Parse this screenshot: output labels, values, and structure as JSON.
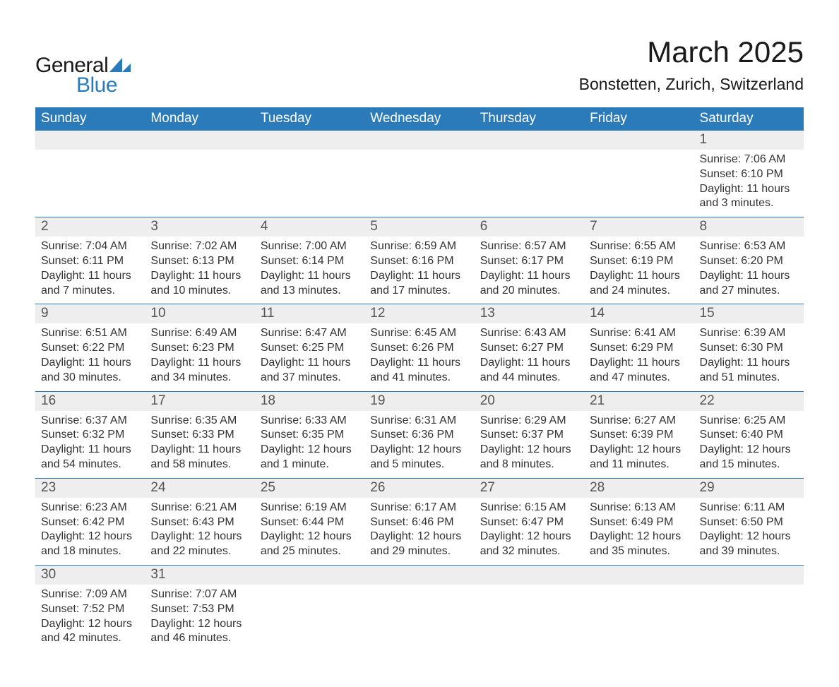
{
  "logo": {
    "text_general": "General",
    "text_blue": "Blue",
    "mark_color": "#2b7bba",
    "general_color": "#1a1a1a"
  },
  "header": {
    "month_title": "March 2025",
    "location": "Bonstetten, Zurich, Switzerland"
  },
  "colors": {
    "header_bg": "#2b7bba",
    "header_text": "#ffffff",
    "daynum_bg": "#eeeeee",
    "daynum_text": "#555555",
    "detail_text": "#333333",
    "row_border": "#2b7bba",
    "background": "#ffffff"
  },
  "typography": {
    "month_title_fontsize": 42,
    "location_fontsize": 23,
    "dow_fontsize": 19,
    "daynum_fontsize": 19,
    "detail_fontsize": 16,
    "logo_fontsize": 30,
    "font_family": "Arial"
  },
  "days_of_week": [
    "Sunday",
    "Monday",
    "Tuesday",
    "Wednesday",
    "Thursday",
    "Friday",
    "Saturday"
  ],
  "weeks": [
    {
      "nums": [
        "",
        "",
        "",
        "",
        "",
        "",
        "1"
      ],
      "details": [
        null,
        null,
        null,
        null,
        null,
        null,
        {
          "sunrise": "Sunrise: 7:06 AM",
          "sunset": "Sunset: 6:10 PM",
          "daylight": "Daylight: 11 hours and 3 minutes."
        }
      ]
    },
    {
      "nums": [
        "2",
        "3",
        "4",
        "5",
        "6",
        "7",
        "8"
      ],
      "details": [
        {
          "sunrise": "Sunrise: 7:04 AM",
          "sunset": "Sunset: 6:11 PM",
          "daylight": "Daylight: 11 hours and 7 minutes."
        },
        {
          "sunrise": "Sunrise: 7:02 AM",
          "sunset": "Sunset: 6:13 PM",
          "daylight": "Daylight: 11 hours and 10 minutes."
        },
        {
          "sunrise": "Sunrise: 7:00 AM",
          "sunset": "Sunset: 6:14 PM",
          "daylight": "Daylight: 11 hours and 13 minutes."
        },
        {
          "sunrise": "Sunrise: 6:59 AM",
          "sunset": "Sunset: 6:16 PM",
          "daylight": "Daylight: 11 hours and 17 minutes."
        },
        {
          "sunrise": "Sunrise: 6:57 AM",
          "sunset": "Sunset: 6:17 PM",
          "daylight": "Daylight: 11 hours and 20 minutes."
        },
        {
          "sunrise": "Sunrise: 6:55 AM",
          "sunset": "Sunset: 6:19 PM",
          "daylight": "Daylight: 11 hours and 24 minutes."
        },
        {
          "sunrise": "Sunrise: 6:53 AM",
          "sunset": "Sunset: 6:20 PM",
          "daylight": "Daylight: 11 hours and 27 minutes."
        }
      ]
    },
    {
      "nums": [
        "9",
        "10",
        "11",
        "12",
        "13",
        "14",
        "15"
      ],
      "details": [
        {
          "sunrise": "Sunrise: 6:51 AM",
          "sunset": "Sunset: 6:22 PM",
          "daylight": "Daylight: 11 hours and 30 minutes."
        },
        {
          "sunrise": "Sunrise: 6:49 AM",
          "sunset": "Sunset: 6:23 PM",
          "daylight": "Daylight: 11 hours and 34 minutes."
        },
        {
          "sunrise": "Sunrise: 6:47 AM",
          "sunset": "Sunset: 6:25 PM",
          "daylight": "Daylight: 11 hours and 37 minutes."
        },
        {
          "sunrise": "Sunrise: 6:45 AM",
          "sunset": "Sunset: 6:26 PM",
          "daylight": "Daylight: 11 hours and 41 minutes."
        },
        {
          "sunrise": "Sunrise: 6:43 AM",
          "sunset": "Sunset: 6:27 PM",
          "daylight": "Daylight: 11 hours and 44 minutes."
        },
        {
          "sunrise": "Sunrise: 6:41 AM",
          "sunset": "Sunset: 6:29 PM",
          "daylight": "Daylight: 11 hours and 47 minutes."
        },
        {
          "sunrise": "Sunrise: 6:39 AM",
          "sunset": "Sunset: 6:30 PM",
          "daylight": "Daylight: 11 hours and 51 minutes."
        }
      ]
    },
    {
      "nums": [
        "16",
        "17",
        "18",
        "19",
        "20",
        "21",
        "22"
      ],
      "details": [
        {
          "sunrise": "Sunrise: 6:37 AM",
          "sunset": "Sunset: 6:32 PM",
          "daylight": "Daylight: 11 hours and 54 minutes."
        },
        {
          "sunrise": "Sunrise: 6:35 AM",
          "sunset": "Sunset: 6:33 PM",
          "daylight": "Daylight: 11 hours and 58 minutes."
        },
        {
          "sunrise": "Sunrise: 6:33 AM",
          "sunset": "Sunset: 6:35 PM",
          "daylight": "Daylight: 12 hours and 1 minute."
        },
        {
          "sunrise": "Sunrise: 6:31 AM",
          "sunset": "Sunset: 6:36 PM",
          "daylight": "Daylight: 12 hours and 5 minutes."
        },
        {
          "sunrise": "Sunrise: 6:29 AM",
          "sunset": "Sunset: 6:37 PM",
          "daylight": "Daylight: 12 hours and 8 minutes."
        },
        {
          "sunrise": "Sunrise: 6:27 AM",
          "sunset": "Sunset: 6:39 PM",
          "daylight": "Daylight: 12 hours and 11 minutes."
        },
        {
          "sunrise": "Sunrise: 6:25 AM",
          "sunset": "Sunset: 6:40 PM",
          "daylight": "Daylight: 12 hours and 15 minutes."
        }
      ]
    },
    {
      "nums": [
        "23",
        "24",
        "25",
        "26",
        "27",
        "28",
        "29"
      ],
      "details": [
        {
          "sunrise": "Sunrise: 6:23 AM",
          "sunset": "Sunset: 6:42 PM",
          "daylight": "Daylight: 12 hours and 18 minutes."
        },
        {
          "sunrise": "Sunrise: 6:21 AM",
          "sunset": "Sunset: 6:43 PM",
          "daylight": "Daylight: 12 hours and 22 minutes."
        },
        {
          "sunrise": "Sunrise: 6:19 AM",
          "sunset": "Sunset: 6:44 PM",
          "daylight": "Daylight: 12 hours and 25 minutes."
        },
        {
          "sunrise": "Sunrise: 6:17 AM",
          "sunset": "Sunset: 6:46 PM",
          "daylight": "Daylight: 12 hours and 29 minutes."
        },
        {
          "sunrise": "Sunrise: 6:15 AM",
          "sunset": "Sunset: 6:47 PM",
          "daylight": "Daylight: 12 hours and 32 minutes."
        },
        {
          "sunrise": "Sunrise: 6:13 AM",
          "sunset": "Sunset: 6:49 PM",
          "daylight": "Daylight: 12 hours and 35 minutes."
        },
        {
          "sunrise": "Sunrise: 6:11 AM",
          "sunset": "Sunset: 6:50 PM",
          "daylight": "Daylight: 12 hours and 39 minutes."
        }
      ]
    },
    {
      "nums": [
        "30",
        "31",
        "",
        "",
        "",
        "",
        ""
      ],
      "details": [
        {
          "sunrise": "Sunrise: 7:09 AM",
          "sunset": "Sunset: 7:52 PM",
          "daylight": "Daylight: 12 hours and 42 minutes."
        },
        {
          "sunrise": "Sunrise: 7:07 AM",
          "sunset": "Sunset: 7:53 PM",
          "daylight": "Daylight: 12 hours and 46 minutes."
        },
        null,
        null,
        null,
        null,
        null
      ]
    }
  ]
}
